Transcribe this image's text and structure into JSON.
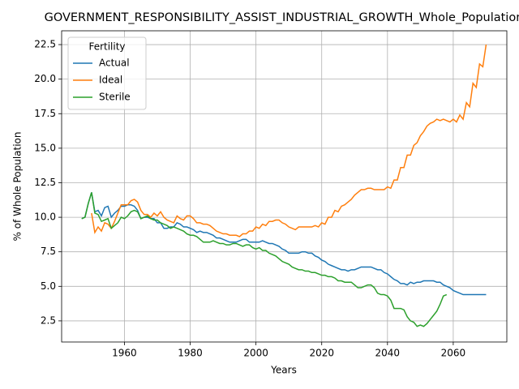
{
  "chart_data": {
    "type": "line",
    "title": "GOVERNMENT_RESPONSIBILITY_ASSIST_INDUSTRIAL_GROWTH_Whole_Population",
    "xlabel": "Years",
    "ylabel": "% of Whole Population",
    "legend_title": "Fertility",
    "legend": "upper left",
    "grid": true,
    "xlim": [
      1940.9,
      2076.3
    ],
    "ylim": [
      0.97,
      23.5
    ],
    "xticks": [
      1960,
      1980,
      2000,
      2020,
      2040,
      2060
    ],
    "yticks": [
      2.5,
      {
        "value": 5.0,
        "label": "5.0"
      },
      7.5,
      {
        "value": 10.0,
        "label": "10.0"
      },
      12.5,
      {
        "value": 15.0,
        "label": "15.0"
      },
      17.5,
      {
        "value": 20.0,
        "label": "20.0"
      },
      22.5
    ],
    "x": [
      1947,
      1948,
      1949,
      1950,
      1951,
      1952,
      1953,
      1954,
      1955,
      1956,
      1957,
      1958,
      1959,
      1960,
      1961,
      1962,
      1963,
      1964,
      1965,
      1966,
      1967,
      1968,
      1969,
      1970,
      1971,
      1972,
      1973,
      1974,
      1975,
      1976,
      1977,
      1978,
      1979,
      1980,
      1981,
      1982,
      1983,
      1984,
      1985,
      1986,
      1987,
      1988,
      1989,
      1990,
      1991,
      1992,
      1993,
      1994,
      1995,
      1996,
      1997,
      1998,
      1999,
      2000,
      2001,
      2002,
      2003,
      2004,
      2005,
      2006,
      2007,
      2008,
      2009,
      2010,
      2011,
      2012,
      2013,
      2014,
      2015,
      2016,
      2017,
      2018,
      2019,
      2020,
      2021,
      2022,
      2023,
      2024,
      2025,
      2026,
      2027,
      2028,
      2029,
      2030,
      2031,
      2032,
      2033,
      2034,
      2035,
      2036,
      2037,
      2038,
      2039,
      2040,
      2041,
      2042,
      2043,
      2044,
      2045,
      2046,
      2047,
      2048,
      2049,
      2050,
      2051,
      2052,
      2053,
      2054,
      2055,
      2056,
      2057,
      2058,
      2059,
      2060,
      2061,
      2062,
      2063,
      2064,
      2065,
      2066,
      2067,
      2068,
      2069,
      2070
    ],
    "series": [
      {
        "name": "Actual",
        "color": "#1f77b4",
        "values": [
          9.9,
          10.0,
          11.0,
          11.8,
          10.4,
          10.5,
          10.1,
          10.7,
          10.8,
          10.0,
          10.3,
          10.5,
          10.8,
          10.8,
          10.9,
          10.9,
          10.8,
          10.5,
          9.9,
          10.0,
          10.0,
          9.9,
          9.9,
          9.6,
          9.6,
          9.2,
          9.2,
          9.3,
          9.3,
          9.6,
          9.5,
          9.3,
          9.3,
          9.2,
          9.1,
          8.9,
          9.0,
          8.9,
          8.9,
          8.8,
          8.7,
          8.5,
          8.5,
          8.4,
          8.3,
          8.2,
          8.2,
          8.2,
          8.3,
          8.4,
          8.4,
          8.2,
          8.2,
          8.2,
          8.2,
          8.3,
          8.2,
          8.1,
          8.1,
          8.0,
          7.9,
          7.7,
          7.6,
          7.4,
          7.4,
          7.4,
          7.4,
          7.5,
          7.5,
          7.4,
          7.4,
          7.2,
          7.1,
          6.9,
          6.8,
          6.6,
          6.5,
          6.4,
          6.3,
          6.2,
          6.2,
          6.1,
          6.2,
          6.2,
          6.3,
          6.4,
          6.4,
          6.4,
          6.4,
          6.3,
          6.2,
          6.2,
          6.0,
          5.9,
          5.7,
          5.5,
          5.4,
          5.2,
          5.2,
          5.1,
          5.3,
          5.2,
          5.3,
          5.3,
          5.4,
          5.4,
          5.4,
          5.4,
          5.3,
          5.3,
          5.1,
          5.0,
          4.9,
          4.7,
          4.6,
          4.5,
          4.4,
          4.4,
          4.4,
          4.4,
          4.4,
          4.4,
          4.4,
          4.4
        ]
      },
      {
        "name": "Ideal",
        "color": "#ff7f0e",
        "values": [
          null,
          null,
          null,
          10.3,
          8.9,
          9.3,
          9.0,
          9.6,
          9.5,
          9.2,
          9.7,
          10.3,
          10.9,
          10.9,
          10.9,
          11.2,
          11.3,
          11.1,
          10.5,
          10.2,
          10.2,
          10.0,
          10.3,
          10.1,
          10.4,
          10.0,
          9.8,
          9.7,
          9.6,
          10.1,
          9.9,
          9.8,
          10.1,
          10.1,
          9.9,
          9.6,
          9.6,
          9.5,
          9.5,
          9.4,
          9.2,
          9.0,
          8.9,
          8.8,
          8.8,
          8.7,
          8.7,
          8.7,
          8.6,
          8.8,
          8.8,
          9.0,
          9.0,
          9.3,
          9.2,
          9.5,
          9.4,
          9.7,
          9.7,
          9.8,
          9.8,
          9.6,
          9.5,
          9.3,
          9.2,
          9.1,
          9.3,
          9.3,
          9.3,
          9.3,
          9.3,
          9.4,
          9.3,
          9.6,
          9.5,
          10.0,
          10.0,
          10.5,
          10.4,
          10.8,
          10.9,
          11.1,
          11.3,
          11.6,
          11.8,
          12.0,
          12.0,
          12.1,
          12.1,
          12.0,
          12.0,
          12.0,
          12.0,
          12.2,
          12.1,
          12.7,
          12.7,
          13.6,
          13.6,
          14.5,
          14.5,
          15.2,
          15.4,
          15.9,
          16.2,
          16.6,
          16.8,
          16.9,
          17.1,
          17.0,
          17.1,
          17.0,
          16.9,
          17.1,
          16.9,
          17.4,
          17.1,
          18.3,
          18.0,
          19.7,
          19.4,
          21.1,
          20.9,
          22.5
        ]
      },
      {
        "name": "Sterile",
        "color": "#2ca02c",
        "values": [
          9.9,
          10.0,
          11.0,
          11.8,
          10.3,
          10.2,
          9.7,
          9.8,
          9.9,
          9.2,
          9.4,
          9.6,
          10.0,
          9.9,
          10.1,
          10.4,
          10.5,
          10.4,
          9.9,
          10.0,
          10.1,
          9.9,
          9.8,
          9.8,
          9.6,
          9.5,
          9.4,
          9.2,
          9.3,
          9.2,
          9.1,
          9.0,
          8.8,
          8.7,
          8.7,
          8.6,
          8.4,
          8.2,
          8.2,
          8.2,
          8.3,
          8.2,
          8.1,
          8.1,
          8.0,
          8.0,
          8.1,
          8.1,
          8.0,
          7.9,
          8.0,
          8.0,
          7.8,
          7.7,
          7.8,
          7.6,
          7.6,
          7.4,
          7.3,
          7.2,
          7.0,
          6.8,
          6.7,
          6.6,
          6.4,
          6.3,
          6.2,
          6.2,
          6.1,
          6.1,
          6.0,
          6.0,
          5.9,
          5.8,
          5.8,
          5.7,
          5.7,
          5.6,
          5.4,
          5.4,
          5.3,
          5.3,
          5.3,
          5.1,
          4.9,
          4.9,
          5.0,
          5.1,
          5.1,
          4.9,
          4.5,
          4.4,
          4.4,
          4.3,
          4.0,
          3.4,
          3.4,
          3.4,
          3.3,
          2.8,
          2.5,
          2.4,
          2.1,
          2.2,
          2.1,
          2.3,
          2.6,
          2.9,
          3.2,
          3.7,
          4.3,
          4.4,
          null,
          null,
          null,
          null,
          null,
          null,
          null,
          null,
          null,
          null,
          null,
          null
        ]
      }
    ]
  }
}
